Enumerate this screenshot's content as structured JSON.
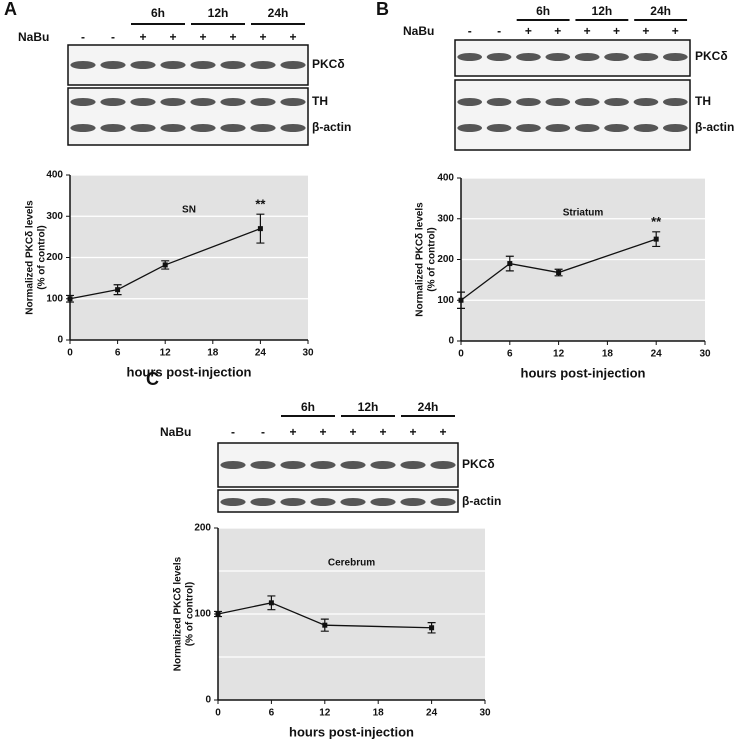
{
  "panels": [
    {
      "letter": "A",
      "treatment": "NaBu",
      "lane_signs": [
        "-",
        "-",
        "+",
        "+",
        "+",
        "+",
        "+",
        "+"
      ],
      "time_groups": [
        "6h",
        "12h",
        "24h"
      ],
      "blots": [
        [
          "PKCδ"
        ],
        [
          "TH",
          "β-actin"
        ]
      ]
    },
    {
      "letter": "B",
      "treatment": "NaBu",
      "lane_signs": [
        "-",
        "-",
        "+",
        "+",
        "+",
        "+",
        "+",
        "+"
      ],
      "time_groups": [
        "6h",
        "12h",
        "24h"
      ],
      "blots": [
        [
          "PKCδ"
        ],
        [
          "TH",
          "β-actin"
        ]
      ]
    },
    {
      "letter": "C",
      "treatment": "NaBu",
      "lane_signs": [
        "-",
        "-",
        "+",
        "+",
        "+",
        "+",
        "+",
        "+"
      ],
      "time_groups": [
        "6h",
        "12h",
        "24h"
      ],
      "blots": [
        [
          "PKCδ"
        ],
        [
          "β-actin"
        ]
      ]
    }
  ],
  "chart_data": [
    {
      "type": "line",
      "title": "SN",
      "xlabel": "hours post-injection",
      "ylabel": [
        "Normalized PKCδ levels",
        "(% of control)"
      ],
      "x": [
        0,
        6,
        12,
        24
      ],
      "values": [
        100,
        122,
        182,
        270
      ],
      "errors": [
        8,
        12,
        10,
        35
      ],
      "annotation": "**",
      "xlim": [
        0,
        30
      ],
      "xticks": [
        0,
        6,
        12,
        18,
        24,
        30
      ],
      "ylim": [
        0,
        400
      ],
      "yticks": [
        0,
        100,
        200,
        300,
        400
      ],
      "grid": true,
      "color": "#111111",
      "background": "#e2e2e2"
    },
    {
      "type": "line",
      "title": "Striatum",
      "xlabel": "hours post-injection",
      "ylabel": [
        "Normalized PKCδ levels",
        "(% of control)"
      ],
      "x": [
        0,
        6,
        12,
        24
      ],
      "values": [
        100,
        190,
        168,
        250
      ],
      "errors": [
        20,
        18,
        8,
        18
      ],
      "annotation": "**",
      "xlim": [
        0,
        30
      ],
      "xticks": [
        0,
        6,
        12,
        18,
        24,
        30
      ],
      "ylim": [
        0,
        400
      ],
      "yticks": [
        0,
        100,
        200,
        300,
        400
      ],
      "grid": true,
      "color": "#111111",
      "background": "#e2e2e2"
    },
    {
      "type": "line",
      "title": "Cerebrum",
      "xlabel": "hours post-injection",
      "ylabel": [
        "Normalized PKCδ levels",
        "(% of control)"
      ],
      "x": [
        0,
        6,
        12,
        24
      ],
      "values": [
        100,
        113,
        87,
        84
      ],
      "errors": [
        3,
        8,
        7,
        6
      ],
      "xlim": [
        0,
        30
      ],
      "xticks": [
        0,
        6,
        12,
        18,
        24,
        30
      ],
      "ylim": [
        0,
        200
      ],
      "yticks": [
        0,
        100,
        200
      ],
      "yminor": [
        50,
        150
      ],
      "grid": true,
      "color": "#111111",
      "background": "#e2e2e2"
    }
  ]
}
